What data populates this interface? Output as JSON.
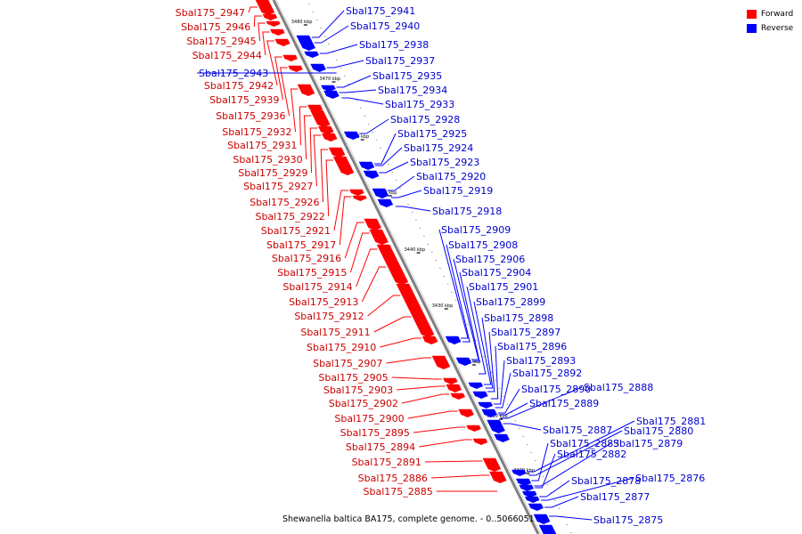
{
  "caption": "Shewanella baltica BA175, complete genome. - 0..5066051",
  "legend": {
    "forward_label": "Forward",
    "reverse_label": "Reverse",
    "forward_color": "#ff0000",
    "reverse_color": "#0000ff"
  },
  "ticks": [
    "3480 kbp",
    "3470 kbp",
    "3460 kbp",
    "3450 kbp",
    "3440 kbp",
    "3430 kbp",
    "3420 kbp",
    "3410 kbp",
    "3400 kbp"
  ],
  "forward_labels": [
    "Sbal175_2947",
    "Sbal175_2946",
    "Sbal175_2945",
    "Sbal175_2944",
    "Sbal175_2942",
    "Sbal175_2939",
    "Sbal175_2936",
    "Sbal175_2932",
    "Sbal175_2931",
    "Sbal175_2930",
    "Sbal175_2929",
    "Sbal175_2927",
    "Sbal175_2926",
    "Sbal175_2922",
    "Sbal175_2921",
    "Sbal175_2917",
    "Sbal175_2916",
    "Sbal175_2915",
    "Sbal175_2914",
    "Sbal175_2913",
    "Sbal175_2912",
    "Sbal175_2911",
    "Sbal175_2910",
    "Sbal175_2907",
    "Sbal175_2905",
    "Sbal175_2903",
    "Sbal175_2902",
    "Sbal175_2900",
    "Sbal175_2895",
    "Sbal175_2894",
    "Sbal175_2891",
    "Sbal175_2886",
    "Sbal175_2885"
  ],
  "reverse_labels": [
    "Sbal175_2941",
    "Sbal175_2940",
    "Sbal175_2943",
    "Sbal175_2938",
    "Sbal175_2937",
    "Sbal175_2935",
    "Sbal175_2934",
    "Sbal175_2933",
    "Sbal175_2928",
    "Sbal175_2925",
    "Sbal175_2924",
    "Sbal175_2923",
    "Sbal175_2920",
    "Sbal175_2919",
    "Sbal175_2918",
    "Sbal175_2909",
    "Sbal175_2908",
    "Sbal175_2906",
    "Sbal175_2904",
    "Sbal175_2901",
    "Sbal175_2899",
    "Sbal175_2898",
    "Sbal175_2897",
    "Sbal175_2896",
    "Sbal175_2893",
    "Sbal175_2892",
    "Sbal175_2890",
    "Sbal175_2888",
    "Sbal175_2889",
    "Sbal175_2887",
    "Sbal175_2881",
    "Sbal175_2880",
    "Sbal175_2883",
    "Sbal175_2879",
    "Sbal175_2882",
    "Sbal175_2878",
    "Sbal175_2876",
    "Sbal175_2877",
    "Sbal175_2875"
  ]
}
